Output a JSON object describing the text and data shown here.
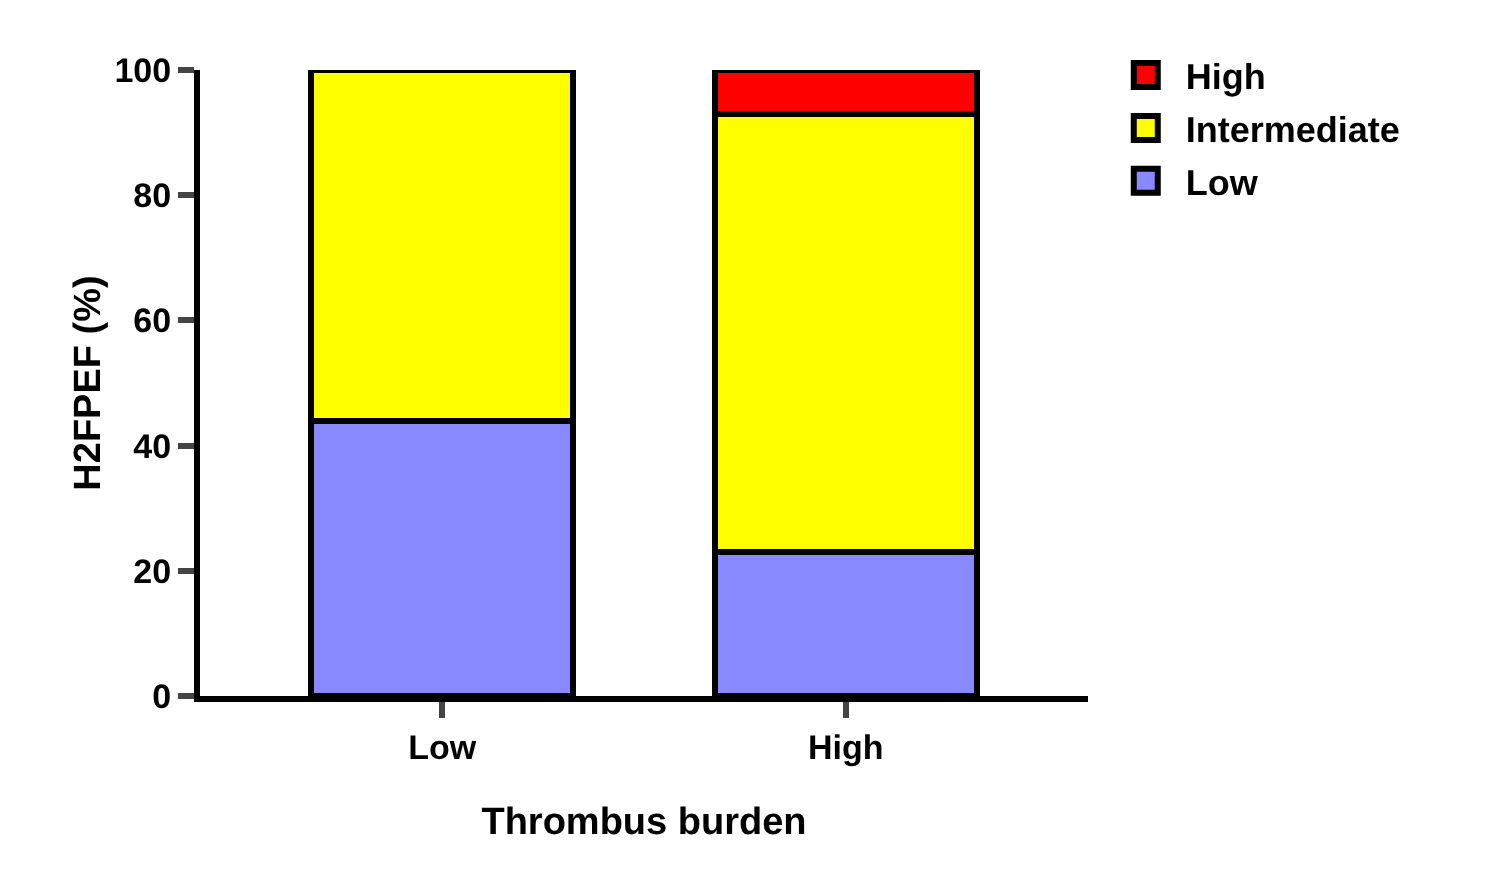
{
  "chart_data": {
    "type": "bar",
    "stacked": true,
    "xlabel": "Thrombus burden",
    "ylabel": "H2FPEF (%)",
    "categories": [
      "Low",
      "High"
    ],
    "series": [
      {
        "name": "Low",
        "color": "#8888ff",
        "values": [
          44,
          23
        ]
      },
      {
        "name": "Intermediate",
        "color": "#ffff00",
        "values": [
          56,
          70
        ]
      },
      {
        "name": "High",
        "color": "#ff0000",
        "values": [
          null,
          7
        ]
      }
    ],
    "ylim": [
      0,
      100
    ],
    "yticks": [
      0,
      20,
      40,
      60,
      80,
      100
    ],
    "grid": false,
    "legend": "top right"
  }
}
